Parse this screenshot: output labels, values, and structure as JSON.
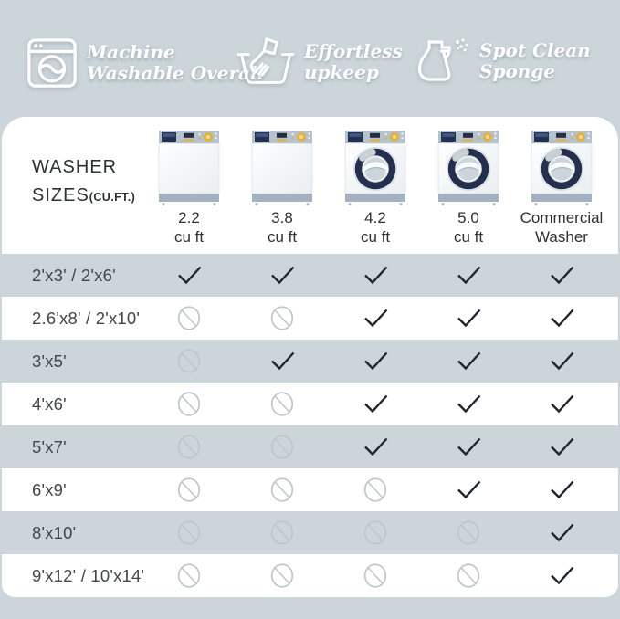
{
  "colors": {
    "page_bg": "#ccd5da",
    "stripe": "#ccd5da",
    "card_bg": "#ffffff",
    "check": "#20262e",
    "prohibited": "#bfc6cb",
    "row_label": "#42474c",
    "title_text": "#2e3136",
    "banner_text": "#ffffff",
    "washer_panel": "#b5c1cb",
    "washer_navy": "#24304e",
    "washer_gold": "#e2b23e",
    "washer_base": "#a4b1be"
  },
  "banner": {
    "features": [
      {
        "id": "machine-washable",
        "icon": "washing-machine-icon",
        "title_lines": [
          "Machine",
          "Washable Overall"
        ]
      },
      {
        "id": "effortless-upkeep",
        "icon": "hand-wash-icon",
        "title_lines": [
          "Effortless",
          "upkeep"
        ]
      },
      {
        "id": "spot-clean-sponge",
        "icon": "spray-bottle-icon",
        "title_lines": [
          "Spot Clean",
          "Sponge"
        ]
      }
    ]
  },
  "chart_data": {
    "type": "table",
    "title_lines": [
      "WASHER",
      "SIZES"
    ],
    "title_sub": "(CU.FT.)",
    "columns": [
      {
        "id": "2-2-cu-ft",
        "label_lines": [
          "2.2",
          "cu ft"
        ],
        "washer_style": "top-load"
      },
      {
        "id": "3-8-cu-ft",
        "label_lines": [
          "3.8",
          "cu ft"
        ],
        "washer_style": "top-load"
      },
      {
        "id": "4-2-cu-ft",
        "label_lines": [
          "4.2",
          "cu ft"
        ],
        "washer_style": "front-load"
      },
      {
        "id": "5-0-cu-ft",
        "label_lines": [
          "5.0",
          "cu ft"
        ],
        "washer_style": "front-load"
      },
      {
        "id": "commercial",
        "label_lines": [
          "Commercial",
          "Washer"
        ],
        "washer_style": "front-load"
      }
    ],
    "rows": [
      {
        "label": "2'x3' / 2'x6'",
        "cells": [
          "yes",
          "yes",
          "yes",
          "yes",
          "yes"
        ]
      },
      {
        "label": "2.6'x8' / 2'x10'",
        "cells": [
          "no",
          "no",
          "yes",
          "yes",
          "yes"
        ]
      },
      {
        "label": "3'x5'",
        "cells": [
          "no",
          "yes",
          "yes",
          "yes",
          "yes"
        ]
      },
      {
        "label": "4'x6'",
        "cells": [
          "no",
          "no",
          "yes",
          "yes",
          "yes"
        ]
      },
      {
        "label": "5'x7'",
        "cells": [
          "no",
          "no",
          "yes",
          "yes",
          "yes"
        ]
      },
      {
        "label": "6'x9'",
        "cells": [
          "no",
          "no",
          "no",
          "yes",
          "yes"
        ]
      },
      {
        "label": "8'x10'",
        "cells": [
          "no",
          "no",
          "no",
          "no",
          "yes"
        ]
      },
      {
        "label": "9'x12' / 10'x14'",
        "cells": [
          "no",
          "no",
          "no",
          "no",
          "yes"
        ]
      }
    ]
  }
}
